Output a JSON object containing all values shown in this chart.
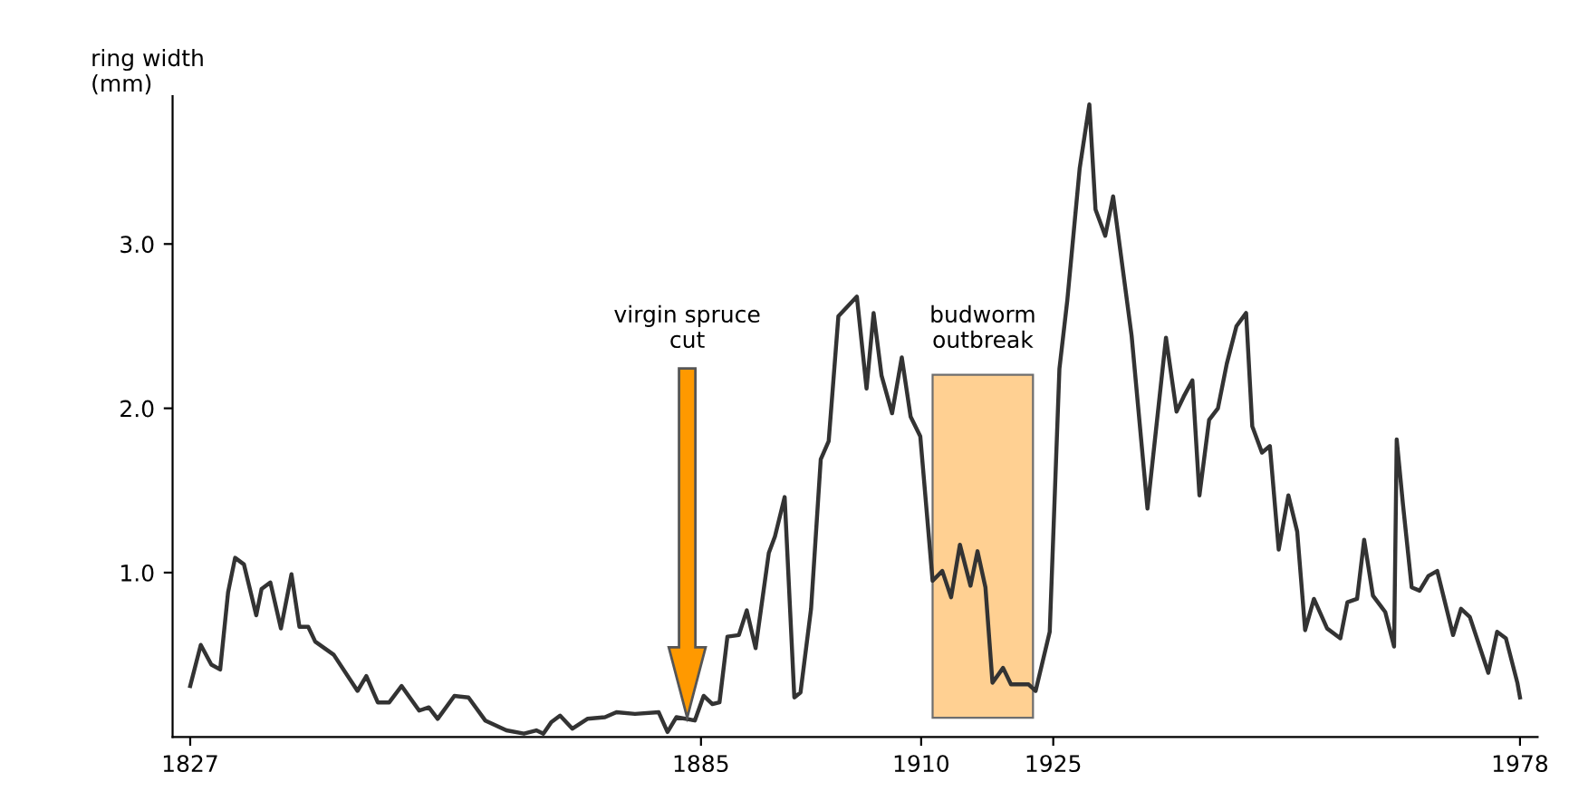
{
  "chart_data": {
    "type": "line",
    "ylabel": "ring width\n(mm)",
    "x": [
      1827.0,
      1828.2,
      1829.4,
      1830.4,
      1831.3,
      1832.1,
      1833.1,
      1834.5,
      1835.1,
      1836.1,
      1837.3,
      1838.5,
      1839.4,
      1840.4,
      1841.2,
      1843.3,
      1846.0,
      1847.0,
      1848.3,
      1849.6,
      1851.0,
      1853.0,
      1854.1,
      1855.1,
      1857.0,
      1858.6,
      1860.5,
      1862.9,
      1864.9,
      1866.3,
      1867.1,
      1868.0,
      1869.0,
      1870.4,
      1872.1,
      1874.1,
      1875.4,
      1877.5,
      1880.2,
      1881.2,
      1882.2,
      1884.3,
      1885.3,
      1886.3,
      1887.1,
      1888.0,
      1889.3,
      1890.2,
      1891.2,
      1892.7,
      1893.4,
      1894.5,
      1895.6,
      1896.3,
      1897.5,
      1898.6,
      1899.5,
      1900.6,
      1902.7,
      1903.8,
      1904.6,
      1905.5,
      1906.7,
      1907.8,
      1908.8,
      1909.9,
      1911.3,
      1912.4,
      1913.4,
      1914.4,
      1915.6,
      1916.4,
      1917.3,
      1918.1,
      1919.3,
      1920.2,
      1922.2,
      1923.0,
      1924.6,
      1925.7,
      1926.6,
      1928.0,
      1929.1,
      1929.8,
      1930.9,
      1931.8,
      1933.9,
      1935.7,
      1937.8,
      1939.0,
      1939.8,
      1940.8,
      1941.6,
      1942.7,
      1943.7,
      1944.7,
      1945.8,
      1946.9,
      1947.6,
      1948.7,
      1949.6,
      1950.6,
      1951.7,
      1952.7,
      1953.6,
      1954.6,
      1956.1,
      1957.6,
      1958.4,
      1959.5,
      1960.3,
      1961.3,
      1962.7,
      1963.7,
      1964.0,
      1964.7,
      1965.7,
      1966.6,
      1967.6,
      1968.6,
      1970.4,
      1971.3,
      1972.3,
      1974.4,
      1975.4,
      1976.4,
      1977.7,
      1978.0
    ],
    "series": [
      {
        "color": "#333333",
        "values": [
          0.31,
          0.56,
          0.44,
          0.41,
          0.88,
          1.09,
          1.05,
          0.74,
          0.9,
          0.94,
          0.66,
          0.99,
          0.67,
          0.67,
          0.58,
          0.5,
          0.28,
          0.37,
          0.21,
          0.21,
          0.31,
          0.16,
          0.18,
          0.11,
          0.25,
          0.24,
          0.1,
          0.04,
          0.02,
          0.04,
          0.02,
          0.09,
          0.13,
          0.05,
          0.11,
          0.12,
          0.15,
          0.14,
          0.15,
          0.03,
          0.12,
          0.1,
          0.25,
          0.2,
          0.21,
          0.61,
          0.62,
          0.77,
          0.54,
          1.12,
          1.22,
          1.46,
          0.24,
          0.27,
          0.78,
          1.69,
          1.8,
          2.56,
          2.68,
          2.12,
          2.58,
          2.2,
          1.97,
          2.31,
          1.95,
          1.83,
          0.95,
          1.01,
          0.85,
          1.17,
          0.92,
          1.13,
          0.91,
          0.33,
          0.42,
          0.32,
          0.32,
          0.28,
          0.64,
          2.24,
          2.66,
          3.46,
          3.85,
          3.21,
          3.05,
          3.29,
          2.44,
          1.39,
          2.43,
          1.98,
          2.07,
          2.17,
          1.47,
          1.93,
          2.0,
          2.27,
          2.5,
          2.58,
          1.89,
          1.73,
          1.77,
          1.14,
          1.47,
          1.25,
          0.65,
          0.84,
          0.66,
          0.6,
          0.82,
          0.84,
          1.2,
          0.86,
          0.76,
          0.55,
          1.81,
          1.42,
          0.91,
          0.89,
          0.98,
          1.01,
          0.62,
          0.78,
          0.73,
          0.39,
          0.64,
          0.6,
          0.33,
          0.24
        ]
      }
    ],
    "xlim": [
      1825,
      1980
    ],
    "xticks": [
      1827,
      1885,
      1910,
      1925,
      1978
    ],
    "ylim": [
      0,
      3.9
    ],
    "yticks": [
      {
        "value": 1,
        "label": "1.0"
      },
      {
        "value": 2,
        "label": "2.0"
      },
      {
        "value": 3,
        "label": "3.0"
      }
    ],
    "marker": "none",
    "line_style": "solid",
    "grid": false,
    "legend": false,
    "annotations": [
      "virgin spruce cut"
    ],
    "bands": [
      {
        "axis": "x",
        "from": 1911.3,
        "to": 1922.7,
        "label": "budworm outbreak",
        "color": "#ffc880"
      }
    ]
  }
}
